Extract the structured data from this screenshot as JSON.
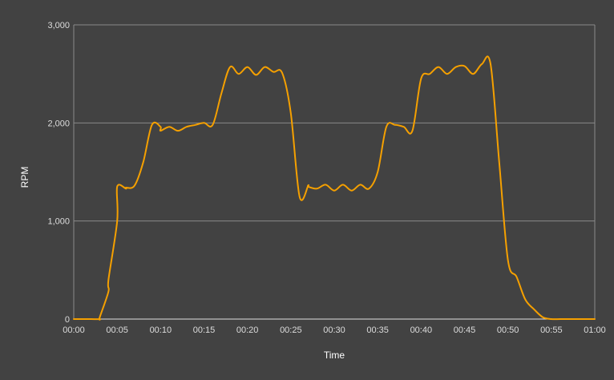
{
  "chart_data": {
    "type": "line",
    "title": "",
    "xlabel": "Time",
    "ylabel": "RPM",
    "xlim": [
      "00:00",
      "01:00"
    ],
    "ylim": [
      0,
      3000
    ],
    "grid": true,
    "minor_x_grid_step_seconds": 100,
    "x_tick_labels": [
      "00:00",
      "00:05",
      "00:10",
      "00:15",
      "00:20",
      "00:25",
      "00:30",
      "00:35",
      "00:40",
      "00:45",
      "00:50",
      "00:55",
      "01:00"
    ],
    "y_ticks": [
      0,
      1000,
      2000,
      3000
    ],
    "y_tick_labels": [
      "0",
      "1,000",
      "2,000",
      "3,000"
    ],
    "colors": {
      "series": "#f5a000",
      "background": "#424242",
      "grid": "#8a8a8a"
    },
    "series": [
      {
        "x": [
          "00:00",
          "00:01",
          "00:02",
          "00:03",
          "00:03",
          "00:04",
          "00:04",
          "00:05",
          "00:05",
          "00:06",
          "00:06",
          "00:07",
          "00:08",
          "00:09",
          "00:10",
          "00:10",
          "00:11",
          "00:12",
          "00:13",
          "00:14",
          "00:15",
          "00:16",
          "00:17",
          "00:18",
          "00:19",
          "00:20",
          "00:21",
          "00:22",
          "00:23",
          "00:24",
          "00:25",
          "00:26",
          "00:27",
          "00:27",
          "00:28",
          "00:29",
          "00:30",
          "00:31",
          "00:32",
          "00:33",
          "00:34",
          "00:35",
          "00:36",
          "00:37",
          "00:38",
          "00:39",
          "00:40",
          "00:41",
          "00:42",
          "00:43",
          "00:44",
          "00:45",
          "00:46",
          "00:47",
          "00:48",
          "00:49",
          "00:50",
          "00:51",
          "00:52",
          "00:53",
          "00:54",
          "00:55",
          "00:56",
          "00:57",
          "00:58",
          "00:59",
          "01:00"
        ],
        "y": [
          0,
          0,
          0,
          0,
          20,
          280,
          400,
          1000,
          1350,
          1330,
          1340,
          1360,
          1600,
          1980,
          1960,
          1920,
          1960,
          1920,
          1960,
          1980,
          2000,
          1980,
          2300,
          2570,
          2500,
          2570,
          2490,
          2570,
          2520,
          2510,
          2100,
          1250,
          1360,
          1350,
          1330,
          1370,
          1310,
          1370,
          1310,
          1370,
          1330,
          1500,
          1960,
          1980,
          1960,
          1920,
          2450,
          2500,
          2570,
          2500,
          2570,
          2580,
          2500,
          2600,
          2600,
          1600,
          600,
          430,
          200,
          100,
          20,
          0,
          0,
          0,
          0,
          0,
          0
        ]
      }
    ]
  }
}
